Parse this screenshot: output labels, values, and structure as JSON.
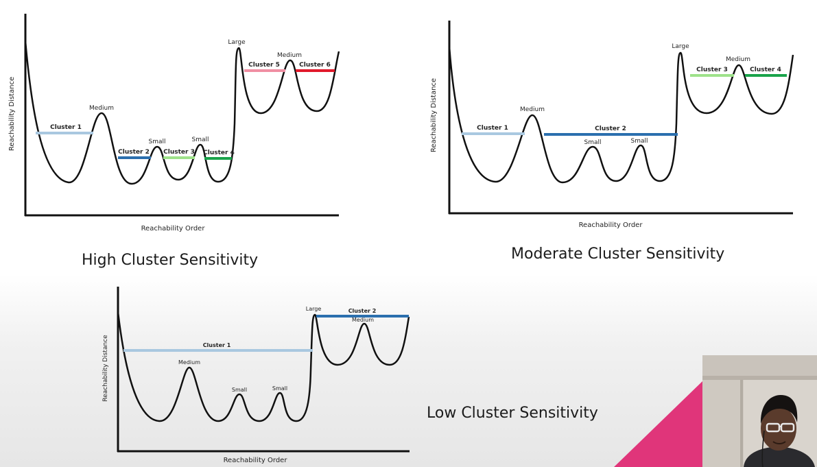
{
  "slide": {
    "captions": {
      "high": "High Cluster Sensitivity",
      "moderate": "Moderate Cluster Sensitivity",
      "low": "Low Cluster Sensitivity"
    },
    "colors": {
      "curve": "#111111",
      "light_blue": "#a9c8e0",
      "dark_blue": "#2b6fae",
      "light_green": "#9ee28a",
      "dark_green": "#19a34a",
      "pink": "#f08fa3",
      "red": "#e11a2b",
      "accent_pink": "#e0357a"
    }
  },
  "plots": {
    "high": {
      "xlabel": "Reachability Order",
      "ylabel": "Reachability Distance",
      "peaks": [
        "Medium",
        "Small",
        "Small",
        "Large",
        "Medium"
      ],
      "clusters": [
        "Cluster 1",
        "Cluster 2",
        "Cluster 3",
        "Cluster 4",
        "Cluster 5",
        "Cluster 6"
      ]
    },
    "moderate": {
      "xlabel": "Reachability Order",
      "ylabel": "Reachability Distance",
      "peaks": [
        "Medium",
        "Small",
        "Small",
        "Large",
        "Medium"
      ],
      "clusters": [
        "Cluster 1",
        "Cluster 2",
        "Cluster 3",
        "Cluster 4"
      ]
    },
    "low": {
      "xlabel": "Reachability Order",
      "ylabel": "Reachability Distance",
      "peaks": [
        "Medium",
        "Small",
        "Small",
        "Large",
        "Medium"
      ],
      "clusters": [
        "Cluster 1",
        "Cluster 2"
      ]
    }
  }
}
